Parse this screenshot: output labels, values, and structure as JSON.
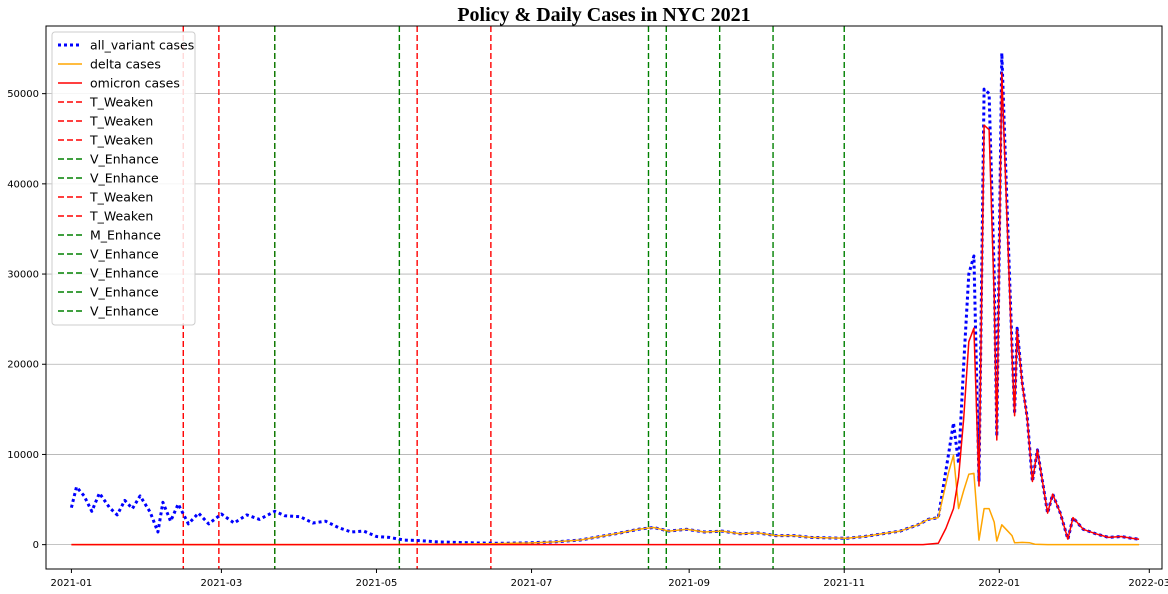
{
  "chart_data": {
    "type": "line",
    "title": "Policy & Daily Cases in NYC 2021",
    "xlabel": "",
    "ylabel": "",
    "x_axis_type": "date",
    "xlim": [
      "2020-12-22",
      "2022-03-06"
    ],
    "ylim": [
      -2700,
      57500
    ],
    "x_ticks": [
      "2021-01",
      "2021-03",
      "2021-05",
      "2021-07",
      "2021-09",
      "2021-11",
      "2022-01",
      "2022-03"
    ],
    "x_tick_dates": [
      "2021-01-01",
      "2021-03-01",
      "2021-05-01",
      "2021-07-01",
      "2021-09-01",
      "2021-11-01",
      "2022-01-01",
      "2022-03-01"
    ],
    "y_ticks": [
      0,
      10000,
      20000,
      30000,
      40000,
      50000
    ],
    "y_grid": true,
    "legend_position": "top-left",
    "colors": {
      "all": "#0000ff",
      "delta": "#ffa500",
      "omicron": "#ff0000",
      "weaken": "#ff0000",
      "enhance": "#008000"
    },
    "series": [
      {
        "name": "all_variant cases",
        "style": "dotted",
        "color": "#0000ff",
        "points": [
          [
            "2021-01-01",
            4100
          ],
          [
            "2021-01-03",
            6400
          ],
          [
            "2021-01-06",
            5400
          ],
          [
            "2021-01-09",
            3700
          ],
          [
            "2021-01-12",
            5700
          ],
          [
            "2021-01-16",
            4100
          ],
          [
            "2021-01-19",
            3300
          ],
          [
            "2021-01-22",
            4900
          ],
          [
            "2021-01-25",
            4000
          ],
          [
            "2021-01-28",
            5400
          ],
          [
            "2021-02-01",
            3600
          ],
          [
            "2021-02-04",
            1400
          ],
          [
            "2021-02-06",
            4700
          ],
          [
            "2021-02-09",
            2600
          ],
          [
            "2021-02-12",
            4500
          ],
          [
            "2021-02-16",
            2300
          ],
          [
            "2021-02-20",
            3500
          ],
          [
            "2021-02-24",
            2300
          ],
          [
            "2021-03-01",
            3400
          ],
          [
            "2021-03-06",
            2400
          ],
          [
            "2021-03-11",
            3300
          ],
          [
            "2021-03-16",
            2800
          ],
          [
            "2021-03-22",
            3700
          ],
          [
            "2021-03-26",
            3200
          ],
          [
            "2021-04-01",
            3100
          ],
          [
            "2021-04-06",
            2400
          ],
          [
            "2021-04-11",
            2600
          ],
          [
            "2021-04-16",
            1900
          ],
          [
            "2021-04-21",
            1400
          ],
          [
            "2021-04-26",
            1500
          ],
          [
            "2021-05-01",
            900
          ],
          [
            "2021-05-06",
            800
          ],
          [
            "2021-05-12",
            500
          ],
          [
            "2021-05-18",
            450
          ],
          [
            "2021-05-25",
            300
          ],
          [
            "2021-06-01",
            250
          ],
          [
            "2021-06-10",
            180
          ],
          [
            "2021-06-20",
            150
          ],
          [
            "2021-06-30",
            200
          ],
          [
            "2021-07-10",
            300
          ],
          [
            "2021-07-20",
            500
          ],
          [
            "2021-07-28",
            900
          ],
          [
            "2021-08-05",
            1300
          ],
          [
            "2021-08-12",
            1700
          ],
          [
            "2021-08-18",
            1900
          ],
          [
            "2021-08-24",
            1500
          ],
          [
            "2021-08-31",
            1700
          ],
          [
            "2021-09-07",
            1400
          ],
          [
            "2021-09-14",
            1500
          ],
          [
            "2021-09-21",
            1200
          ],
          [
            "2021-09-28",
            1300
          ],
          [
            "2021-10-05",
            1000
          ],
          [
            "2021-10-12",
            1000
          ],
          [
            "2021-10-19",
            800
          ],
          [
            "2021-10-26",
            750
          ],
          [
            "2021-11-02",
            700
          ],
          [
            "2021-11-09",
            900
          ],
          [
            "2021-11-16",
            1200
          ],
          [
            "2021-11-23",
            1500
          ],
          [
            "2021-11-30",
            2200
          ],
          [
            "2021-12-04",
            2800
          ],
          [
            "2021-12-08",
            3000
          ],
          [
            "2021-12-12",
            10000
          ],
          [
            "2021-12-14",
            13500
          ],
          [
            "2021-12-16",
            9000
          ],
          [
            "2021-12-18",
            20000
          ],
          [
            "2021-12-20",
            30000
          ],
          [
            "2021-12-22",
            32000
          ],
          [
            "2021-12-24",
            7000
          ],
          [
            "2021-12-26",
            50500
          ],
          [
            "2021-12-28",
            50000
          ],
          [
            "2021-12-30",
            30000
          ],
          [
            "2021-12-31",
            12000
          ],
          [
            "2022-01-02",
            54500
          ],
          [
            "2022-01-04",
            38000
          ],
          [
            "2022-01-06",
            22000
          ],
          [
            "2022-01-07",
            14500
          ],
          [
            "2022-01-08",
            24000
          ],
          [
            "2022-01-10",
            18000
          ],
          [
            "2022-01-12",
            14000
          ],
          [
            "2022-01-14",
            7000
          ],
          [
            "2022-01-16",
            10500
          ],
          [
            "2022-01-18",
            7000
          ],
          [
            "2022-01-20",
            3500
          ],
          [
            "2022-01-22",
            5600
          ],
          [
            "2022-01-25",
            3500
          ],
          [
            "2022-01-28",
            600
          ],
          [
            "2022-01-30",
            3000
          ],
          [
            "2022-02-03",
            1700
          ],
          [
            "2022-02-08",
            1200
          ],
          [
            "2022-02-13",
            800
          ],
          [
            "2022-02-18",
            900
          ],
          [
            "2022-02-22",
            700
          ],
          [
            "2022-02-25",
            600
          ]
        ]
      },
      {
        "name": "delta cases",
        "style": "solid",
        "color": "#ffa500",
        "points": [
          [
            "2021-01-01",
            0
          ],
          [
            "2021-05-01",
            0
          ],
          [
            "2021-06-15",
            100
          ],
          [
            "2021-06-30",
            180
          ],
          [
            "2021-07-10",
            300
          ],
          [
            "2021-07-20",
            500
          ],
          [
            "2021-07-28",
            900
          ],
          [
            "2021-08-05",
            1300
          ],
          [
            "2021-08-12",
            1700
          ],
          [
            "2021-08-18",
            1900
          ],
          [
            "2021-08-24",
            1500
          ],
          [
            "2021-08-31",
            1700
          ],
          [
            "2021-09-07",
            1400
          ],
          [
            "2021-09-14",
            1500
          ],
          [
            "2021-09-21",
            1200
          ],
          [
            "2021-09-28",
            1300
          ],
          [
            "2021-10-05",
            1000
          ],
          [
            "2021-10-12",
            1000
          ],
          [
            "2021-10-19",
            800
          ],
          [
            "2021-10-26",
            750
          ],
          [
            "2021-11-02",
            700
          ],
          [
            "2021-11-09",
            900
          ],
          [
            "2021-11-16",
            1200
          ],
          [
            "2021-11-23",
            1500
          ],
          [
            "2021-11-30",
            2200
          ],
          [
            "2021-12-04",
            2800
          ],
          [
            "2021-12-08",
            3000
          ],
          [
            "2021-12-12",
            8000
          ],
          [
            "2021-12-14",
            9900
          ],
          [
            "2021-12-16",
            4000
          ],
          [
            "2021-12-18",
            6000
          ],
          [
            "2021-12-20",
            7800
          ],
          [
            "2021-12-22",
            7900
          ],
          [
            "2021-12-24",
            500
          ],
          [
            "2021-12-26",
            4000
          ],
          [
            "2021-12-28",
            4000
          ],
          [
            "2021-12-30",
            2500
          ],
          [
            "2021-12-31",
            400
          ],
          [
            "2022-01-02",
            2200
          ],
          [
            "2022-01-04",
            1600
          ],
          [
            "2022-01-06",
            1000
          ],
          [
            "2022-01-07",
            200
          ],
          [
            "2022-01-10",
            250
          ],
          [
            "2022-01-13",
            200
          ],
          [
            "2022-01-15",
            50
          ],
          [
            "2022-01-20",
            0
          ],
          [
            "2022-02-25",
            0
          ]
        ]
      },
      {
        "name": "omicron cases",
        "style": "solid",
        "color": "#ff0000",
        "points": [
          [
            "2021-01-01",
            0
          ],
          [
            "2021-12-02",
            0
          ],
          [
            "2021-12-08",
            150
          ],
          [
            "2021-12-11",
            1800
          ],
          [
            "2021-12-14",
            4000
          ],
          [
            "2021-12-16",
            7500
          ],
          [
            "2021-12-18",
            14000
          ],
          [
            "2021-12-20",
            22500
          ],
          [
            "2021-12-22",
            24000
          ],
          [
            "2021-12-24",
            6500
          ],
          [
            "2021-12-26",
            46500
          ],
          [
            "2021-12-28",
            46000
          ],
          [
            "2021-12-30",
            27500
          ],
          [
            "2021-12-31",
            11600
          ],
          [
            "2022-01-02",
            52300
          ],
          [
            "2022-01-04",
            36400
          ],
          [
            "2022-01-06",
            21000
          ],
          [
            "2022-01-07",
            14300
          ],
          [
            "2022-01-08",
            23800
          ],
          [
            "2022-01-10",
            17800
          ],
          [
            "2022-01-12",
            13900
          ],
          [
            "2022-01-14",
            7000
          ],
          [
            "2022-01-16",
            10500
          ],
          [
            "2022-01-18",
            7000
          ],
          [
            "2022-01-20",
            3500
          ],
          [
            "2022-01-22",
            5600
          ],
          [
            "2022-01-25",
            3500
          ],
          [
            "2022-01-28",
            600
          ],
          [
            "2022-01-30",
            3000
          ],
          [
            "2022-02-03",
            1700
          ],
          [
            "2022-02-08",
            1200
          ],
          [
            "2022-02-13",
            800
          ],
          [
            "2022-02-18",
            900
          ],
          [
            "2022-02-22",
            700
          ],
          [
            "2022-02-25",
            600
          ]
        ]
      }
    ],
    "policies": [
      {
        "name": "T_Weaken",
        "kind": "weaken",
        "date": "2021-02-14"
      },
      {
        "name": "T_Weaken",
        "kind": "weaken",
        "date": "2021-02-28"
      },
      {
        "name": "T_Weaken",
        "kind": "weaken",
        "date": "2021-03-22"
      },
      {
        "name": "V_Enhance",
        "kind": "enhance",
        "date": "2021-03-22"
      },
      {
        "name": "V_Enhance",
        "kind": "enhance",
        "date": "2021-05-10"
      },
      {
        "name": "T_Weaken",
        "kind": "weaken",
        "date": "2021-05-17"
      },
      {
        "name": "T_Weaken",
        "kind": "weaken",
        "date": "2021-06-15"
      },
      {
        "name": "M_Enhance",
        "kind": "enhance",
        "date": "2021-08-16"
      },
      {
        "name": "V_Enhance",
        "kind": "enhance",
        "date": "2021-08-23"
      },
      {
        "name": "V_Enhance",
        "kind": "enhance",
        "date": "2021-09-13"
      },
      {
        "name": "V_Enhance",
        "kind": "enhance",
        "date": "2021-10-04"
      },
      {
        "name": "V_Enhance",
        "kind": "enhance",
        "date": "2021-11-01"
      }
    ]
  }
}
